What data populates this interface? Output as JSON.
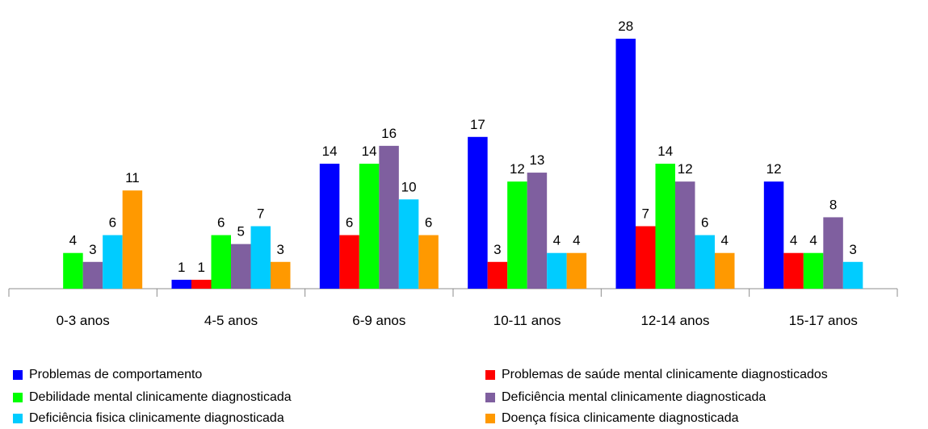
{
  "chart_data": {
    "type": "bar",
    "title": "",
    "xlabel": "",
    "ylabel": "",
    "ylim": [
      0,
      28
    ],
    "grid": false,
    "legend_position": "bottom",
    "categories": [
      "0-3 anos",
      "4-5 anos",
      "6-9 anos",
      "10-11 anos",
      "12-14 anos",
      "15-17 anos"
    ],
    "series": [
      {
        "name": "Problemas de comportamento",
        "color": "#0000ff",
        "values": [
          null,
          1,
          14,
          17,
          28,
          12
        ],
        "labels": [
          "",
          "1",
          "14",
          "17",
          "28",
          "12"
        ]
      },
      {
        "name": "Problemas de saúde mental clinicamente diagnosticados",
        "color": "#ff0000",
        "values": [
          null,
          1,
          6,
          3,
          7,
          4
        ],
        "labels": [
          "",
          "1",
          "6",
          "3",
          "7",
          "4"
        ]
      },
      {
        "name": "Debilidade mental clinicamente diagnosticada",
        "color": "#00ff00",
        "values": [
          4,
          6,
          14,
          12,
          14,
          4
        ],
        "labels": [
          "4",
          "6",
          "14",
          "12",
          "14",
          "4"
        ]
      },
      {
        "name": "Deficiência mental clinicamente diagnosticada",
        "color": "#7f5f9f",
        "values": [
          3,
          5,
          16,
          13,
          12,
          8
        ],
        "labels": [
          "3",
          "5",
          "16",
          "13",
          "12",
          "8"
        ]
      },
      {
        "name": "Deficiência fisica clinicamente diagnosticada",
        "color": "#00ccff",
        "values": [
          6,
          7,
          10,
          4,
          6,
          3
        ],
        "labels": [
          "6",
          "7",
          "10",
          "4",
          "6",
          "3"
        ]
      },
      {
        "name": "Doença física clinicamente diagnosticada",
        "color": "#ff9900",
        "values": [
          11,
          3,
          6,
          4,
          4,
          null
        ],
        "labels": [
          "11",
          "3",
          "6",
          "4",
          "4",
          ""
        ]
      }
    ]
  }
}
